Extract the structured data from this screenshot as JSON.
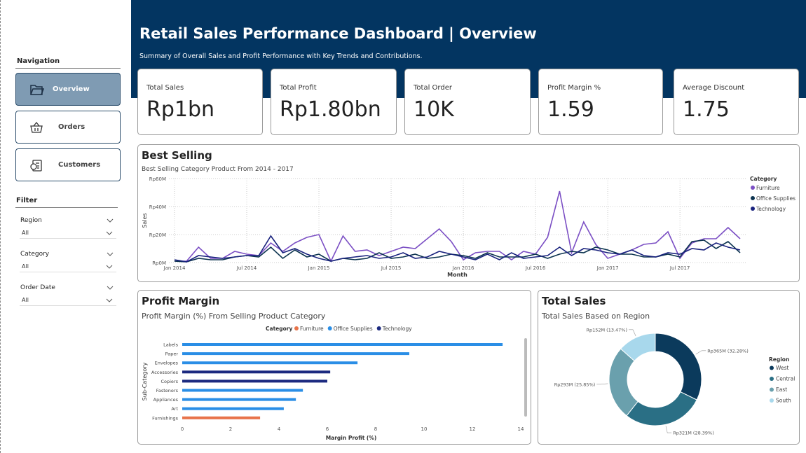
{
  "header": {
    "title": "Retail Sales Performance Dashboard | Overview",
    "subtitle": "Summary of Overall Sales and Profit Performance with Key Trends and Contributions."
  },
  "navigation": {
    "title": "Navigation",
    "items": [
      "Overview",
      "Orders",
      "Customers"
    ]
  },
  "filters": {
    "title": "Filter",
    "items": [
      {
        "label": "Region",
        "value": "All"
      },
      {
        "label": "Category",
        "value": "All"
      },
      {
        "label": "Order Date",
        "value": "All"
      }
    ]
  },
  "kpis": [
    {
      "label": "Total Sales",
      "value": "Rp1bn"
    },
    {
      "label": "Total Profit",
      "value": "Rp1.80bn"
    },
    {
      "label": "Total Order",
      "value": "10K"
    },
    {
      "label": "Profit Margin %",
      "value": "1.59"
    },
    {
      "label": "Average Discount",
      "value": "1.75"
    }
  ],
  "chart_data": [
    {
      "type": "line",
      "title": "Best Selling",
      "subtitle": "Best Selling Category Product From 2014 - 2017",
      "xlabel": "Month",
      "ylabel": "Sales",
      "legend_title": "Category",
      "grid": true,
      "categories": [
        "Jan 2014",
        null,
        null,
        null,
        null,
        null,
        "Jul 2014",
        null,
        null,
        null,
        null,
        null,
        "Jan 2015",
        null,
        null,
        null,
        null,
        null,
        "Jul 2015",
        null,
        null,
        null,
        null,
        null,
        "Jan 2016",
        null,
        null,
        null,
        null,
        null,
        "Jul 2016",
        null,
        null,
        null,
        null,
        null,
        "Jan 2017",
        null,
        null,
        null,
        null,
        null,
        "Jul 2017",
        null,
        null,
        null,
        null,
        null
      ],
      "ylim": [
        0,
        60
      ],
      "yticks": [
        {
          "value": 0,
          "label": "Rp0M"
        },
        {
          "value": 20,
          "label": "Rp20M"
        },
        {
          "value": 40,
          "label": "Rp40M"
        },
        {
          "value": 60,
          "label": "Rp60M"
        }
      ],
      "series": [
        {
          "name": "Furniture",
          "color": "#7b4fc4",
          "values": [
            1,
            1,
            11,
            3,
            3,
            8,
            6,
            5,
            14,
            8,
            14,
            18,
            20,
            1,
            19,
            8,
            9,
            5,
            8,
            11,
            10,
            17,
            24,
            15,
            2,
            7,
            8,
            8,
            2,
            8,
            6,
            18,
            51,
            7,
            29,
            13,
            3,
            6,
            9,
            13,
            14,
            22,
            3,
            14,
            17,
            17,
            25,
            17
          ]
        },
        {
          "name": "Office Supplies",
          "color": "#0d3450",
          "values": [
            1,
            0.5,
            3,
            2,
            2,
            4,
            5,
            4,
            11,
            3,
            9,
            4,
            6,
            1,
            3,
            2,
            3,
            7,
            3,
            4,
            6,
            3,
            4,
            6,
            5,
            3,
            7,
            4,
            4,
            4,
            6,
            3,
            6,
            8,
            7,
            11,
            9,
            6,
            6,
            4,
            4,
            6,
            4,
            15,
            16,
            10,
            15,
            7
          ]
        },
        {
          "name": "Technology",
          "color": "#1a237e",
          "values": [
            2,
            0.5,
            5,
            4,
            3,
            4,
            5,
            5,
            19,
            7,
            10,
            6,
            3,
            1,
            3,
            4,
            5,
            3,
            4,
            7,
            3,
            4,
            8,
            6,
            4,
            2,
            6,
            2,
            7,
            3,
            4,
            5,
            11,
            5,
            10,
            9,
            7,
            6,
            9,
            5,
            4,
            7,
            6,
            10,
            9,
            14,
            11,
            9
          ]
        }
      ]
    },
    {
      "type": "hbar",
      "title": "Profit Margin",
      "subtitle": "Profit Margin (%) From Selling Product Category",
      "xlabel": "Margin Profit (%)",
      "ylabel": "Sub-Category",
      "legend_title": "Category",
      "categories": [
        "Labels",
        "Paper",
        "Envelopes",
        "Accessories",
        "Copiers",
        "Fasteners",
        "Appliances",
        "Art",
        "Furnishings"
      ],
      "xlim": [
        0,
        14
      ],
      "xticks": [
        0,
        2,
        4,
        6,
        8,
        10,
        12,
        14
      ],
      "series": [
        {
          "name": "Furniture",
          "color": "#e8734a",
          "values": [
            null,
            null,
            null,
            null,
            null,
            null,
            null,
            null,
            3.22
          ]
        },
        {
          "name": "Office Supplies",
          "color": "#2a8ee6",
          "values": [
            13.25,
            9.39,
            7.25,
            null,
            null,
            4.99,
            4.7,
            4.2,
            null
          ]
        },
        {
          "name": "Technology",
          "color": "#1c2a80",
          "values": [
            null,
            null,
            null,
            6.12,
            6.0,
            null,
            null,
            null,
            null
          ]
        }
      ]
    },
    {
      "type": "donut",
      "title": "Total Sales",
      "subtitle": "Total Sales Based on Region",
      "legend_title": "Region",
      "categories": [
        "West",
        "Central",
        "East",
        "South"
      ],
      "values": [
        365,
        321,
        293,
        152
      ],
      "value_labels": [
        "Rp365M (32.28%)",
        "Rp321M (28.39%)",
        "Rp293M (25.85%)",
        "Rp152M (13.47%)"
      ],
      "colors": [
        "#0b3a5c",
        "#2a6f85",
        "#6aa0ad",
        "#a8d8ec"
      ]
    }
  ]
}
